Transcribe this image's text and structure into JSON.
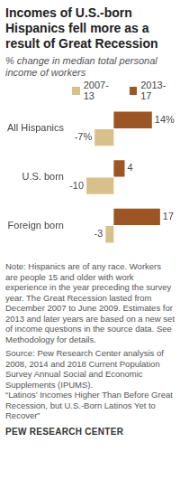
{
  "chart_data": {
    "type": "bar",
    "orientation": "horizontal",
    "title": "Incomes of U.S.-born Hispanics fell more as a result of Great Recession",
    "subtitle": "% change in median total personal income of workers",
    "categories": [
      "All Hispanics",
      "U.S. born",
      "Foreign born"
    ],
    "series": [
      {
        "name": "2007-13",
        "color": "#d8c08b",
        "values": [
          -7,
          -10,
          -3
        ],
        "value_labels": [
          "-7%",
          "-10",
          "-3"
        ]
      },
      {
        "name": "2013-17",
        "color": "#9c5524",
        "values": [
          14,
          4,
          17
        ],
        "value_labels": [
          "14%",
          "4",
          "17"
        ]
      }
    ],
    "xlim": [
      -15,
      22
    ],
    "grid": false,
    "data_labels": true,
    "tick_labels": "y",
    "note": "Note: Hispanics are of any race. Workers are people 15 and older with work experience in the year preceding the survey year. The Great Recession lasted from December 2007 to June 2009. Estimates for 2013 and later years are based on a new set of income questions in the source data. See Methodology for details.",
    "source": "Source: Pew Research Center analysis of 2008, 2014 and 2018 Current Population Survey Annual Social and Economic Supplements (IPUMS).",
    "report": "“Latinos’ Incomes Higher Than Before Great Recession, but U.S.-Born Latinos Yet to Recover”",
    "credit": "PEW RESEARCH CENTER"
  }
}
